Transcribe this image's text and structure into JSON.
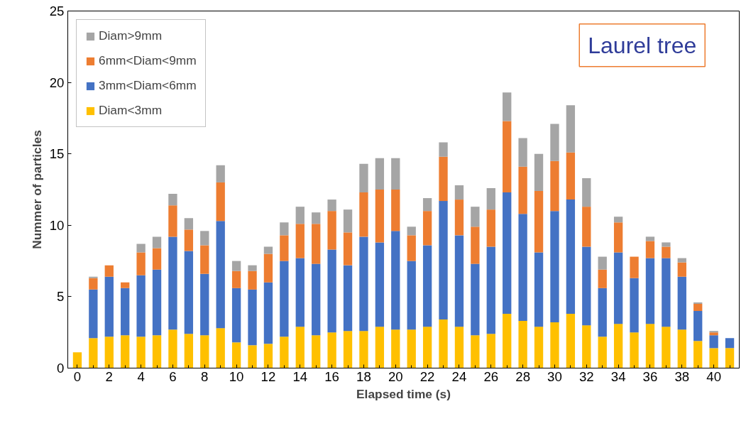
{
  "chart_data": {
    "type": "bar",
    "stacked": true,
    "xlabel": "Elapsed time (s)",
    "ylabel": "Nummer of particles",
    "x": [
      0,
      1,
      2,
      3,
      4,
      5,
      6,
      7,
      8,
      9,
      10,
      11,
      12,
      13,
      14,
      15,
      16,
      17,
      18,
      19,
      20,
      21,
      22,
      23,
      24,
      25,
      26,
      27,
      28,
      29,
      30,
      31,
      32,
      33,
      34,
      35,
      36,
      37,
      38,
      39,
      40,
      41
    ],
    "series": [
      {
        "name": "Diam<3mm",
        "color": "#ffc000",
        "values": [
          1.1,
          2.1,
          2.2,
          2.3,
          2.2,
          2.3,
          2.7,
          2.4,
          2.3,
          2.8,
          1.8,
          1.6,
          1.7,
          2.2,
          2.9,
          2.3,
          2.5,
          2.6,
          2.6,
          2.9,
          2.7,
          2.7,
          2.9,
          3.4,
          2.9,
          2.3,
          2.4,
          3.8,
          3.3,
          2.9,
          3.2,
          3.8,
          3.0,
          2.2,
          3.1,
          2.5,
          3.1,
          2.9,
          2.7,
          1.9,
          1.4,
          1.4
        ]
      },
      {
        "name": "3mm<Diam<6mm",
        "color": "#4472c4",
        "values": [
          0,
          3.4,
          4.2,
          3.3,
          4.3,
          4.6,
          6.5,
          5.8,
          4.3,
          7.5,
          3.8,
          3.9,
          4.3,
          5.3,
          4.8,
          5.0,
          5.8,
          4.6,
          6.6,
          5.9,
          6.9,
          4.8,
          5.7,
          8.3,
          6.4,
          5.0,
          6.1,
          8.5,
          7.5,
          5.2,
          7.8,
          8.0,
          5.5,
          3.4,
          5.0,
          3.8,
          4.6,
          4.8,
          3.7,
          2.1,
          0.9,
          0.7
        ]
      },
      {
        "name": "6mm<Diam<9mm",
        "color": "#ed7d31",
        "values": [
          0,
          0.8,
          0.8,
          0.4,
          1.6,
          1.5,
          2.2,
          1.5,
          2.0,
          2.7,
          1.2,
          1.3,
          2.0,
          1.8,
          2.4,
          2.8,
          2.7,
          2.3,
          3.1,
          3.7,
          2.9,
          1.8,
          2.4,
          3.1,
          2.5,
          2.6,
          2.6,
          5.0,
          3.3,
          4.3,
          3.5,
          3.3,
          2.8,
          1.3,
          2.1,
          1.5,
          1.2,
          0.8,
          1.0,
          0.5,
          0.2,
          0
        ]
      },
      {
        "name": "Diam>9mm",
        "color": "#a5a5a5",
        "values": [
          0,
          0.1,
          0,
          0,
          0.6,
          0.8,
          0.8,
          0.8,
          1.0,
          1.2,
          0.7,
          0.4,
          0.5,
          0.9,
          1.2,
          0.8,
          0.8,
          1.6,
          2.0,
          2.2,
          2.2,
          0.6,
          0.9,
          1.0,
          1.0,
          1.4,
          1.5,
          2.0,
          2.0,
          2.6,
          2.6,
          3.3,
          2.0,
          0.9,
          0.4,
          0,
          0.3,
          0.3,
          0.3,
          0.1,
          0.1,
          0
        ]
      }
    ],
    "xlim": [
      -0.6,
      41.6
    ],
    "xticks": [
      0,
      2,
      4,
      6,
      8,
      10,
      12,
      14,
      16,
      18,
      20,
      22,
      24,
      26,
      28,
      30,
      32,
      34,
      36,
      38,
      40
    ],
    "ylim": [
      0,
      25
    ],
    "yticks": [
      0,
      5,
      10,
      15,
      20,
      25
    ],
    "grid": false,
    "legend": "top left",
    "annotations": [
      "Laurel tree"
    ]
  }
}
